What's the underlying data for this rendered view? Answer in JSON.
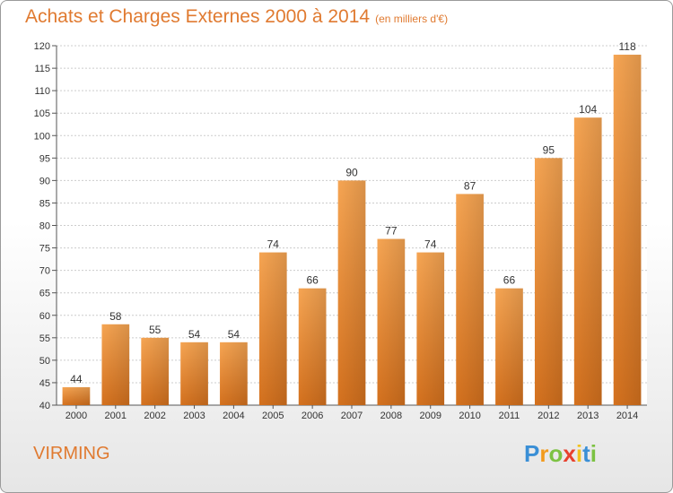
{
  "title": "Achats et Charges Externes 2000 à 2014",
  "unit": "(en milliers d'€)",
  "place": "VIRMING",
  "logo": {
    "letters": [
      "P",
      "r",
      "o",
      "x",
      "i",
      "t",
      "i"
    ],
    "colors": [
      "#3a8fd6",
      "#f29b1d",
      "#7cc242",
      "#e8412e",
      "#f2c21d",
      "#3a8fd6",
      "#7cc242"
    ]
  },
  "chart_data": {
    "type": "bar",
    "categories": [
      "2000",
      "2001",
      "2002",
      "2003",
      "2004",
      "2005",
      "2006",
      "2007",
      "2008",
      "2009",
      "2010",
      "2011",
      "2012",
      "2013",
      "2014"
    ],
    "values": [
      44,
      58,
      55,
      54,
      54,
      74,
      66,
      90,
      77,
      74,
      87,
      66,
      95,
      104,
      118
    ],
    "ylim": [
      40,
      120
    ],
    "yticks": [
      40,
      45,
      50,
      55,
      60,
      65,
      70,
      75,
      80,
      85,
      90,
      95,
      100,
      105,
      110,
      115,
      120
    ],
    "grid": true,
    "bar_color": "#f08c30"
  }
}
